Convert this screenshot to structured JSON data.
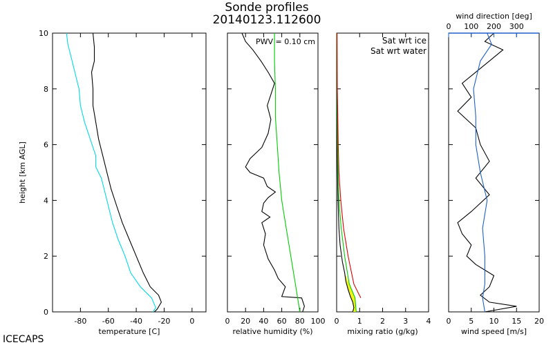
{
  "figure": {
    "title_line1": "Sonde profiles",
    "title_line2": "20140123.112600",
    "corner_label": "ICECAPS",
    "colors": {
      "axes": "#000000",
      "dewpoint": "#00d8e8",
      "ice": "#00cc00",
      "water": "#dd0000",
      "wind_direction": "#1f5fc8",
      "shading": "#f2f200"
    }
  },
  "chart_data": [
    {
      "type": "line",
      "name": "temperature",
      "xlabel": "temperature [C]",
      "ylabel": "height [km AGL]",
      "xlim": [
        -100,
        10
      ],
      "ylim": [
        0,
        10
      ],
      "xticks": [
        -80,
        -60,
        -40,
        -20,
        0
      ],
      "yticks": [
        0,
        2,
        4,
        6,
        8,
        10
      ],
      "series": [
        {
          "color": "#000000",
          "points": [
            [
              -27,
              0.0
            ],
            [
              -25,
              0.1
            ],
            [
              -22,
              0.35
            ],
            [
              -24,
              0.6
            ],
            [
              -30,
              0.9
            ],
            [
              -35,
              1.4
            ],
            [
              -40,
              2.0
            ],
            [
              -45,
              2.6
            ],
            [
              -50,
              3.2
            ],
            [
              -54,
              3.8
            ],
            [
              -58,
              4.4
            ],
            [
              -61,
              5.0
            ],
            [
              -64,
              5.6
            ],
            [
              -67,
              6.2
            ],
            [
              -69,
              6.8
            ],
            [
              -71,
              7.4
            ],
            [
              -71,
              8.0
            ],
            [
              -72,
              8.6
            ],
            [
              -70,
              9.0
            ],
            [
              -70,
              9.5
            ],
            [
              -71,
              10.0
            ]
          ]
        },
        {
          "color": "#00d8e8",
          "points": [
            [
              -28,
              0.0
            ],
            [
              -26,
              0.15
            ],
            [
              -29,
              0.5
            ],
            [
              -37,
              0.9
            ],
            [
              -44,
              1.4
            ],
            [
              -48,
              2.0
            ],
            [
              -53,
              2.6
            ],
            [
              -57,
              3.2
            ],
            [
              -60,
              3.8
            ],
            [
              -63,
              4.4
            ],
            [
              -65,
              4.8
            ],
            [
              -69,
              5.2
            ],
            [
              -69,
              5.6
            ],
            [
              -73,
              6.2
            ],
            [
              -77,
              6.8
            ],
            [
              -80,
              7.4
            ],
            [
              -81,
              8.0
            ],
            [
              -84,
              8.6
            ],
            [
              -86,
              9.0
            ],
            [
              -89,
              9.6
            ],
            [
              -90,
              10.0
            ]
          ]
        }
      ]
    },
    {
      "type": "line",
      "name": "relative humidity",
      "xlabel": "relative humidity (%)",
      "annotation": "PWV = 0.10 cm",
      "xlim": [
        0,
        100
      ],
      "ylim": [
        0,
        10
      ],
      "xticks": [
        0,
        20,
        40,
        60,
        80,
        100
      ],
      "series": [
        {
          "color": "#000000",
          "points": [
            [
              83,
              0.0
            ],
            [
              85,
              0.2
            ],
            [
              82,
              0.5
            ],
            [
              60,
              0.55
            ],
            [
              64,
              0.9
            ],
            [
              56,
              1.2
            ],
            [
              52,
              1.5
            ],
            [
              45,
              1.9
            ],
            [
              40,
              2.4
            ],
            [
              42,
              2.8
            ],
            [
              38,
              3.2
            ],
            [
              47,
              3.4
            ],
            [
              38,
              3.6
            ],
            [
              40,
              3.9
            ],
            [
              45,
              4.1
            ],
            [
              53,
              4.3
            ],
            [
              44,
              4.5
            ],
            [
              40,
              4.8
            ],
            [
              25,
              5.0
            ],
            [
              20,
              5.2
            ],
            [
              25,
              5.5
            ],
            [
              38,
              5.9
            ],
            [
              45,
              6.4
            ],
            [
              48,
              6.9
            ],
            [
              44,
              7.4
            ],
            [
              48,
              7.8
            ],
            [
              52,
              8.2
            ],
            [
              45,
              8.6
            ],
            [
              37,
              9.0
            ],
            [
              28,
              9.4
            ],
            [
              20,
              9.7
            ],
            [
              16,
              10.0
            ]
          ]
        },
        {
          "color": "#00cc00",
          "points": [
            [
              80,
              0.0
            ],
            [
              75,
              1.0
            ],
            [
              70,
              2.0
            ],
            [
              65,
              3.0
            ],
            [
              60,
              4.0
            ],
            [
              57,
              5.0
            ],
            [
              55,
              6.0
            ],
            [
              53,
              7.0
            ],
            [
              53,
              8.0
            ],
            [
              52,
              9.0
            ],
            [
              52,
              10.0
            ]
          ]
        }
      ]
    },
    {
      "type": "line",
      "name": "mixing ratio",
      "xlabel": "mixing ratio (g/kg)",
      "xlim": [
        0,
        4
      ],
      "ylim": [
        0,
        10
      ],
      "xticks": [
        0,
        1,
        2,
        3,
        4
      ],
      "legend": [
        {
          "label": "Sat wrt ice",
          "color": "#00cc00"
        },
        {
          "label": "Sat wrt water",
          "color": "#dd0000"
        }
      ],
      "legend_position": "top-right",
      "series": [
        {
          "color": "#000000",
          "points": [
            [
              0.7,
              0.0
            ],
            [
              0.75,
              0.15
            ],
            [
              0.7,
              0.35
            ],
            [
              0.6,
              0.55
            ],
            [
              0.5,
              0.8
            ],
            [
              0.4,
              1.1
            ],
            [
              0.35,
              1.4
            ],
            [
              0.25,
              1.8
            ],
            [
              0.15,
              2.4
            ],
            [
              0.1,
              3.0
            ],
            [
              0.06,
              4.0
            ],
            [
              0.04,
              5.0
            ],
            [
              0.03,
              6.0
            ],
            [
              0.02,
              7.0
            ],
            [
              0.01,
              8.0
            ],
            [
              0.01,
              10.0
            ]
          ]
        },
        {
          "color": "#00cc00",
          "points": [
            [
              0.85,
              0.0
            ],
            [
              0.8,
              0.5
            ],
            [
              0.55,
              1.0
            ],
            [
              0.35,
              2.0
            ],
            [
              0.2,
              3.0
            ],
            [
              0.1,
              4.0
            ],
            [
              0.06,
              5.0
            ],
            [
              0.04,
              6.0
            ],
            [
              0.03,
              7.0
            ],
            [
              0.02,
              8.0
            ],
            [
              0.01,
              10.0
            ]
          ]
        },
        {
          "color": "#dd0000",
          "points": [
            [
              1.05,
              0.5
            ],
            [
              0.75,
              1.0
            ],
            [
              0.5,
              2.0
            ],
            [
              0.3,
              3.0
            ],
            [
              0.18,
              4.0
            ],
            [
              0.1,
              5.0
            ],
            [
              0.07,
              6.0
            ],
            [
              0.05,
              7.0
            ],
            [
              0.03,
              8.0
            ],
            [
              0.02,
              10.0
            ]
          ]
        }
      ]
    },
    {
      "type": "line",
      "name": "wind",
      "xlabel": "wind speed [m/s]",
      "x2label": "wind direction [deg]",
      "xlim": [
        0,
        20
      ],
      "x2lim": [
        0,
        400
      ],
      "ylim": [
        0,
        10
      ],
      "xticks": [
        0,
        5,
        10,
        15,
        20
      ],
      "x2ticks": [
        0,
        100,
        200,
        300
      ],
      "series": [
        {
          "color": "#000000",
          "points": [
            [
              8,
              0.0
            ],
            [
              15,
              0.2
            ],
            [
              9,
              0.35
            ],
            [
              7,
              0.6
            ],
            [
              9,
              0.9
            ],
            [
              10,
              1.3
            ],
            [
              6,
              1.7
            ],
            [
              4,
              2.0
            ],
            [
              5,
              2.4
            ],
            [
              3,
              2.8
            ],
            [
              2,
              3.2
            ],
            [
              5,
              3.6
            ],
            [
              9,
              4.2
            ],
            [
              6,
              4.8
            ],
            [
              9,
              5.4
            ],
            [
              7,
              6.0
            ],
            [
              6,
              6.6
            ],
            [
              2,
              7.2
            ],
            [
              5,
              7.7
            ],
            [
              3,
              8.2
            ],
            [
              6,
              8.6
            ],
            [
              9,
              9.0
            ],
            [
              12,
              9.4
            ],
            [
              8,
              9.7
            ],
            [
              10,
              10.0
            ]
          ]
        },
        {
          "color": "#1f5fc8",
          "points": [
            [
              160,
              0.0
            ],
            [
              150,
              0.5
            ],
            [
              160,
              1.0
            ],
            [
              160,
              2.0
            ],
            [
              150,
              3.0
            ],
            [
              170,
              4.0
            ],
            [
              140,
              5.0
            ],
            [
              120,
              6.0
            ],
            [
              120,
              7.0
            ],
            [
              110,
              8.0
            ],
            [
              140,
              9.0
            ],
            [
              190,
              9.6
            ],
            [
              170,
              10.0
            ]
          ]
        }
      ]
    }
  ]
}
